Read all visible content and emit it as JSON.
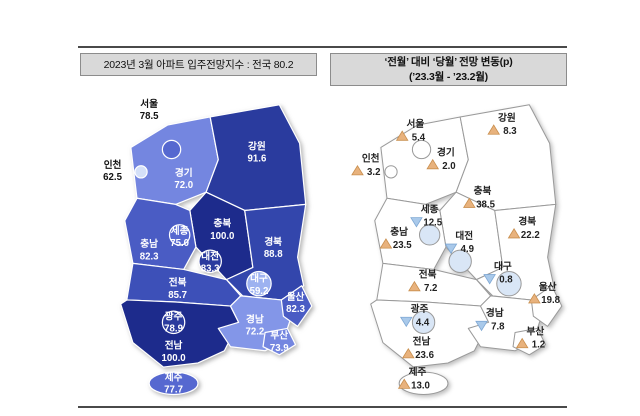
{
  "headers": {
    "left_title": "2023년 3월 아파트 입주전망지수 : 전국 80.2",
    "right_title_line1": "‘전월’ 대비 ‘당월’ 전망 변동(p)",
    "right_title_line2": "(’23.3월 - ’23.2월)"
  },
  "colors": {
    "header_bg": "#d9d9d9",
    "map_border_left": "#ffffff",
    "map_border_right": "#9a9a9a",
    "up_triangle": "#e8b27d",
    "up_triangle_edge": "#c98f4e",
    "down_triangle": "#a9c9ea",
    "down_triangle_edge": "#7fa8d4",
    "down_region_tint": "#d9e6f6"
  },
  "chart_data": [
    {
      "type": "choropleth-map",
      "title": "2023년 3월 아파트 입주전망지수",
      "national_label": "전국",
      "national_value": 80.2,
      "regions": [
        {
          "id": "seoul",
          "name": "서울",
          "value": 78.5,
          "color": "#5668d0",
          "label_color": "#111111"
        },
        {
          "id": "incheon",
          "name": "인천",
          "value": 62.5,
          "color": "#d4e0f8",
          "label_color": "#111111"
        },
        {
          "id": "gyeonggi",
          "name": "경기",
          "value": 72.0,
          "color": "#7486e0",
          "label_color": "#ffffff"
        },
        {
          "id": "gangwon",
          "name": "강원",
          "value": 91.6,
          "color": "#2a3b9e",
          "label_color": "#ffffff"
        },
        {
          "id": "chungbuk",
          "name": "충북",
          "value": 100.0,
          "color": "#1d2b8c",
          "label_color": "#ffffff"
        },
        {
          "id": "sejong",
          "name": "세종",
          "value": 75.0,
          "color": "#5668d0",
          "label_color": "#ffffff"
        },
        {
          "id": "chungnam",
          "name": "충남",
          "value": 82.3,
          "color": "#4a5cc4",
          "label_color": "#ffffff"
        },
        {
          "id": "daejeon",
          "name": "대전",
          "value": 83.3,
          "color": "#2a3b9e",
          "label_color": "#ffffff"
        },
        {
          "id": "gyeongbuk",
          "name": "경북",
          "value": 88.8,
          "color": "#3346ac",
          "label_color": "#ffffff"
        },
        {
          "id": "daegu",
          "name": "대구",
          "value": 59.2,
          "color": "#9db2f0",
          "label_color": "#ffffff"
        },
        {
          "id": "jeonbuk",
          "name": "전북",
          "value": 85.7,
          "color": "#3d50b8",
          "label_color": "#ffffff"
        },
        {
          "id": "ulsan",
          "name": "울산",
          "value": 82.3,
          "color": "#4a5cc4",
          "label_color": "#ffffff"
        },
        {
          "id": "gwangju",
          "name": "광주",
          "value": 78.9,
          "color": "#2a3b9e",
          "label_color": "#ffffff"
        },
        {
          "id": "gyeongnam",
          "name": "경남",
          "value": 72.2,
          "color": "#8396e8",
          "label_color": "#ffffff"
        },
        {
          "id": "busan",
          "name": "부산",
          "value": 73.9,
          "color": "#7486e0",
          "label_color": "#ffffff"
        },
        {
          "id": "jeonnam",
          "name": "전남",
          "value": 100.0,
          "color": "#1d2b8c",
          "label_color": "#ffffff"
        },
        {
          "id": "jeju",
          "name": "제주",
          "value": 77.7,
          "color": "#5668d0",
          "label_color": "#ffffff"
        }
      ]
    },
    {
      "type": "change-symbol-map",
      "title": "‘전월’ 대비 ‘당월’ 전망 변동(p) (’23.3월 - ’23.2월)",
      "regions": [
        {
          "id": "seoul",
          "name": "서울",
          "value": 5.4,
          "direction": "up"
        },
        {
          "id": "incheon",
          "name": "인천",
          "value": 3.2,
          "direction": "up"
        },
        {
          "id": "gyeonggi",
          "name": "경기",
          "value": 2.0,
          "direction": "up"
        },
        {
          "id": "gangwon",
          "name": "강원",
          "value": 8.3,
          "direction": "up"
        },
        {
          "id": "chungbuk",
          "name": "충북",
          "value": 38.5,
          "direction": "up"
        },
        {
          "id": "sejong",
          "name": "세종",
          "value": 12.5,
          "direction": "down"
        },
        {
          "id": "chungnam",
          "name": "충남",
          "value": 23.5,
          "direction": "up"
        },
        {
          "id": "daejeon",
          "name": "대전",
          "value": 4.9,
          "direction": "down"
        },
        {
          "id": "gyeongbuk",
          "name": "경북",
          "value": 22.2,
          "direction": "up"
        },
        {
          "id": "daegu",
          "name": "대구",
          "value": 0.8,
          "direction": "down"
        },
        {
          "id": "jeonbuk",
          "name": "전북",
          "value": 7.2,
          "direction": "up"
        },
        {
          "id": "ulsan",
          "name": "울산",
          "value": 19.8,
          "direction": "up"
        },
        {
          "id": "gwangju",
          "name": "광주",
          "value": 4.4,
          "direction": "down"
        },
        {
          "id": "gyeongnam",
          "name": "경남",
          "value": 7.8,
          "direction": "down"
        },
        {
          "id": "busan",
          "name": "부산",
          "value": 1.2,
          "direction": "up"
        },
        {
          "id": "jeonnam",
          "name": "전남",
          "value": 23.6,
          "direction": "up"
        },
        {
          "id": "jeju",
          "name": "제주",
          "value": 13.0,
          "direction": "up"
        }
      ]
    }
  ]
}
